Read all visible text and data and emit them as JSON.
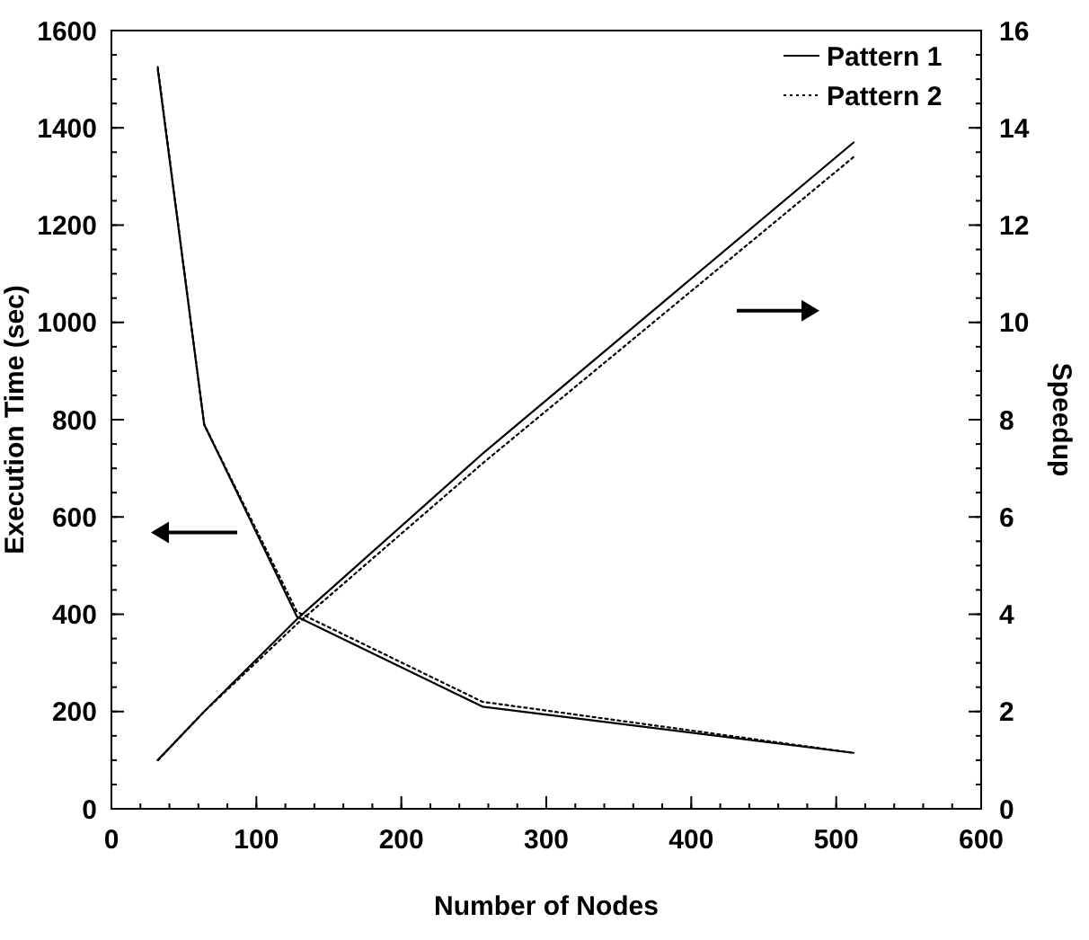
{
  "chart_data": {
    "type": "line",
    "xlabel": "Number of Nodes",
    "ylabel": "Execution Time (sec)",
    "y2label": "Speedup",
    "x": [
      32,
      64,
      128,
      256,
      512
    ],
    "series": [
      {
        "name": "Pattern 1",
        "color": "#000000",
        "line_style": "solid",
        "values": [
          1520,
          790,
          395,
          210,
          115
        ]
      },
      {
        "name": "Pattern 2",
        "color": "#000000",
        "line_style": "dotted",
        "values": [
          1525,
          790,
          405,
          220,
          115
        ]
      },
      {
        "color": "#000000",
        "line_style": "solid",
        "axis": "y2",
        "values": [
          1,
          2,
          3.9,
          7.3,
          13.7
        ]
      },
      {
        "color": "#000000",
        "line_style": "dotted",
        "axis": "y2",
        "values": [
          1,
          2,
          3.8,
          7.1,
          13.4
        ]
      }
    ],
    "xlim": [
      0,
      600
    ],
    "xticks": [
      0,
      100,
      200,
      300,
      400,
      500,
      600
    ],
    "ylim": [
      0,
      1600
    ],
    "yticks": [
      0,
      200,
      400,
      600,
      800,
      1000,
      1200,
      1400,
      1600
    ],
    "y2lim": [
      0,
      16
    ],
    "y2ticks": [
      0,
      2,
      4,
      6,
      8,
      10,
      12,
      14,
      16
    ],
    "legend": "top right",
    "marker": "none"
  }
}
